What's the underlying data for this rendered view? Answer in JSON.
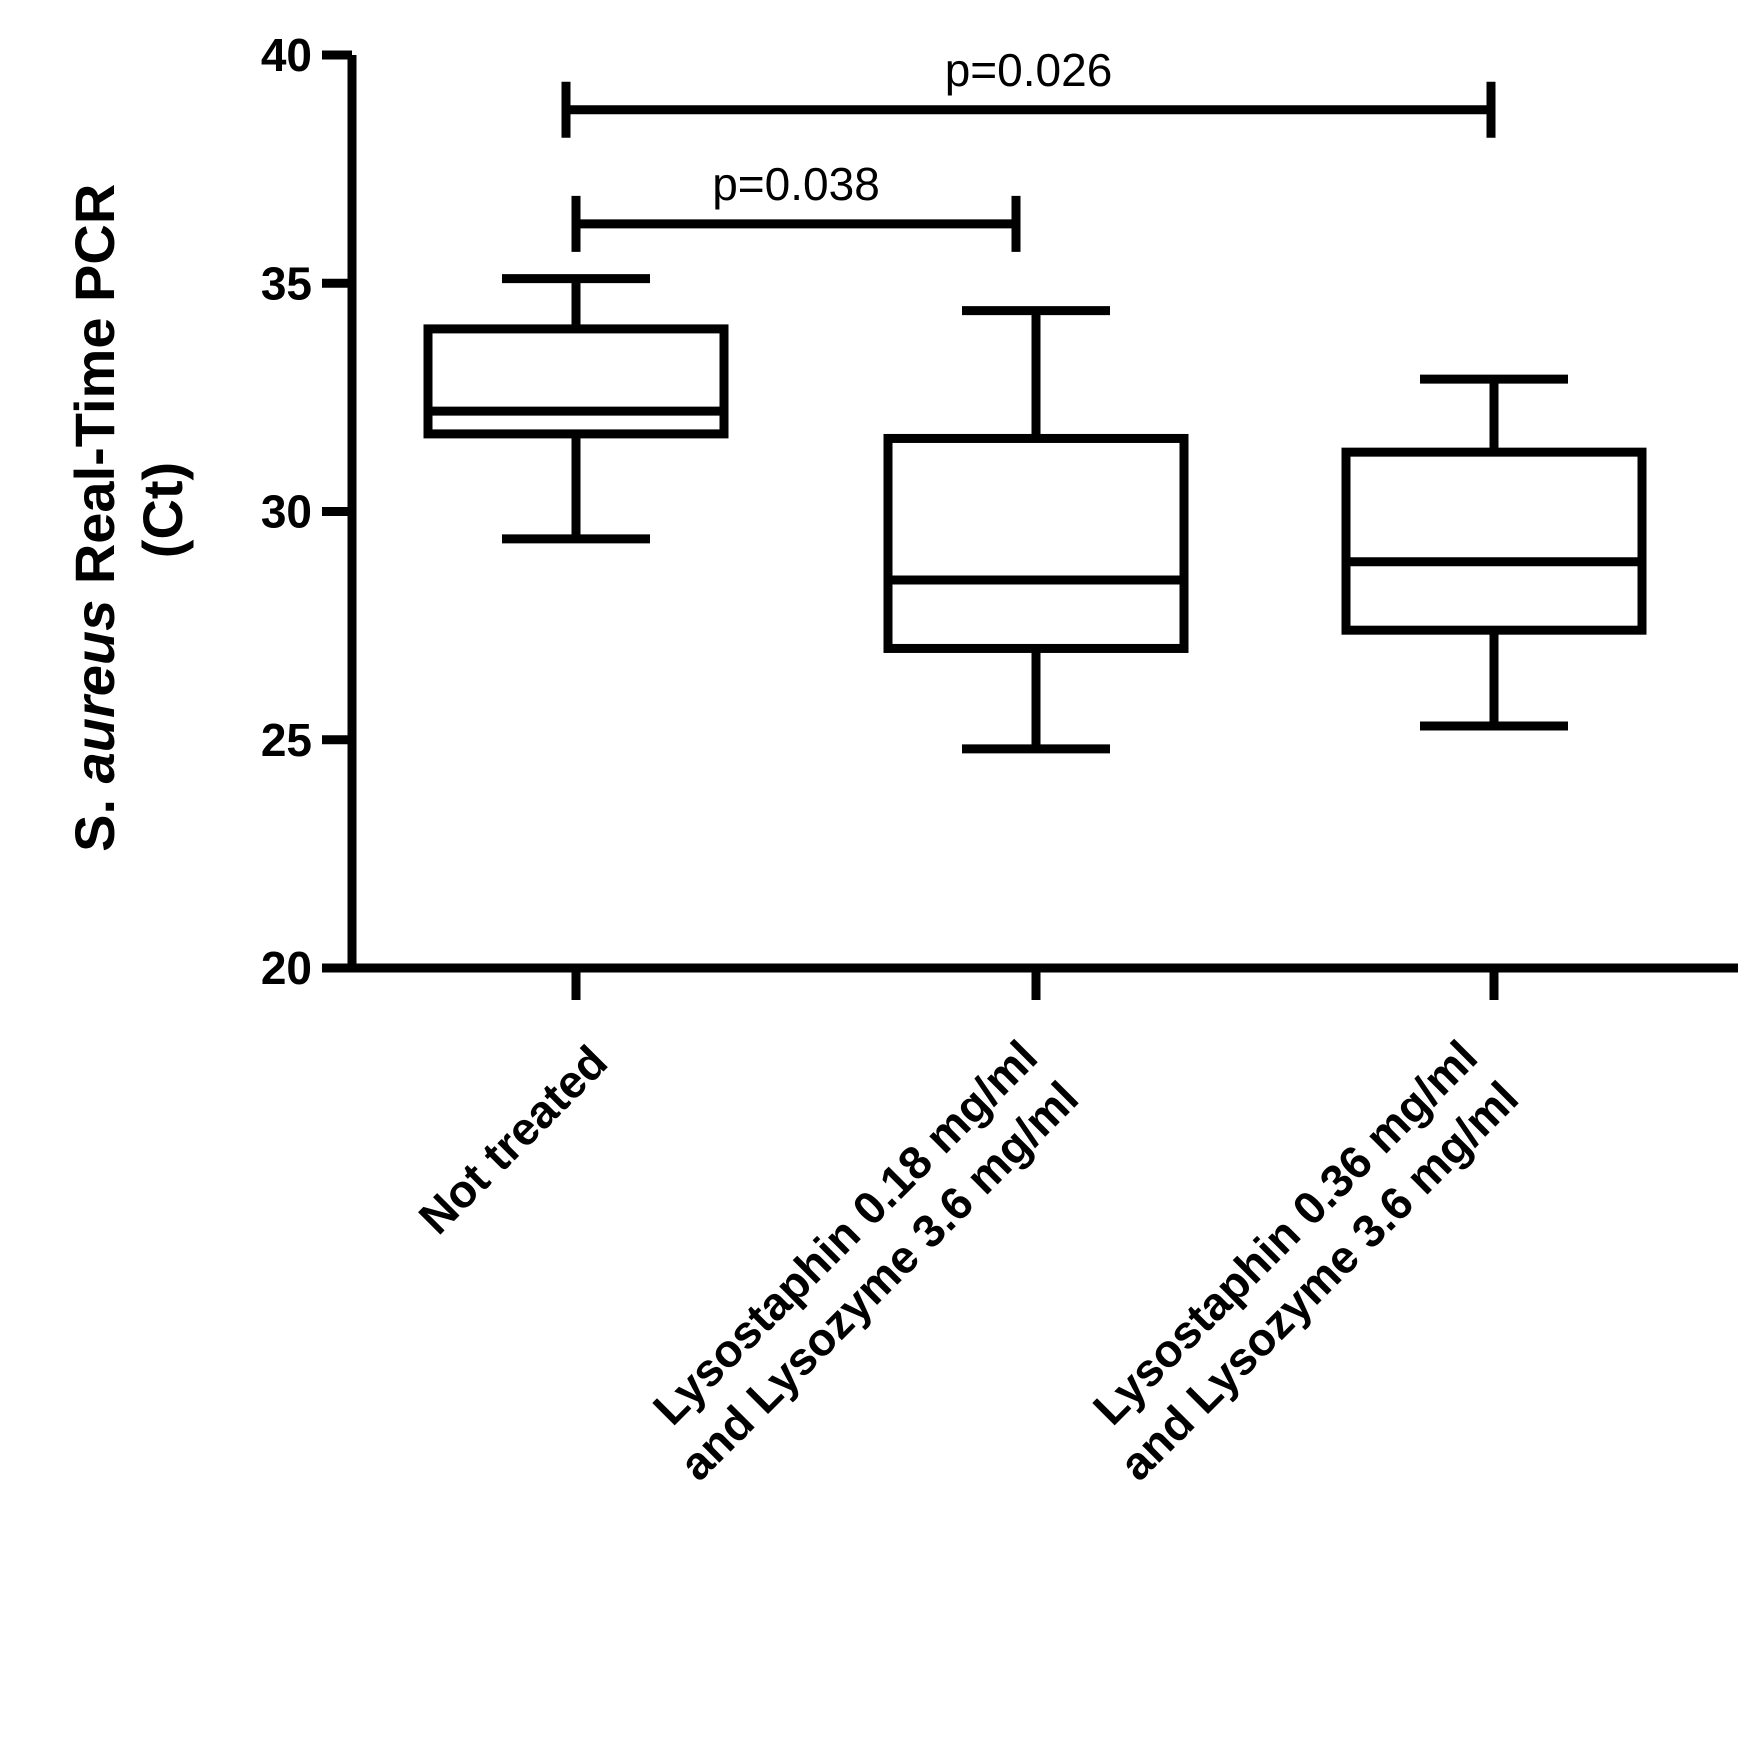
{
  "chart_data": {
    "type": "box",
    "ylabel": {
      "prefix": "S. ",
      "italic": "aureus",
      "suffix": " Real-Time PCR",
      "line2": "(Ct)"
    },
    "ylim": [
      20,
      40
    ],
    "yticks": [
      20,
      25,
      30,
      35,
      40
    ],
    "categories": [
      [
        "Not treated"
      ],
      [
        "Lysostaphin 0.18 mg/ml",
        "and Lysozyme 3.6 mg/ml"
      ],
      [
        "Lysostaphin 0.36 mg/ml",
        "and Lysozyme 3.6 mg/ml"
      ]
    ],
    "boxes": [
      {
        "min": 29.4,
        "q1": 31.7,
        "median": 32.2,
        "q3": 34.0,
        "max": 35.1
      },
      {
        "min": 24.8,
        "q1": 27.0,
        "median": 28.5,
        "q3": 31.6,
        "max": 34.4
      },
      {
        "min": 25.3,
        "q1": 27.4,
        "median": 28.9,
        "q3": 31.3,
        "max": 32.9
      }
    ],
    "significance": [
      {
        "from": 0,
        "to": 1,
        "y": 36.3,
        "label": "p=0.038"
      },
      {
        "from": 0,
        "to": 2,
        "y": 38.8,
        "label": "p=0.026"
      }
    ],
    "grid": false,
    "legend": "none"
  }
}
